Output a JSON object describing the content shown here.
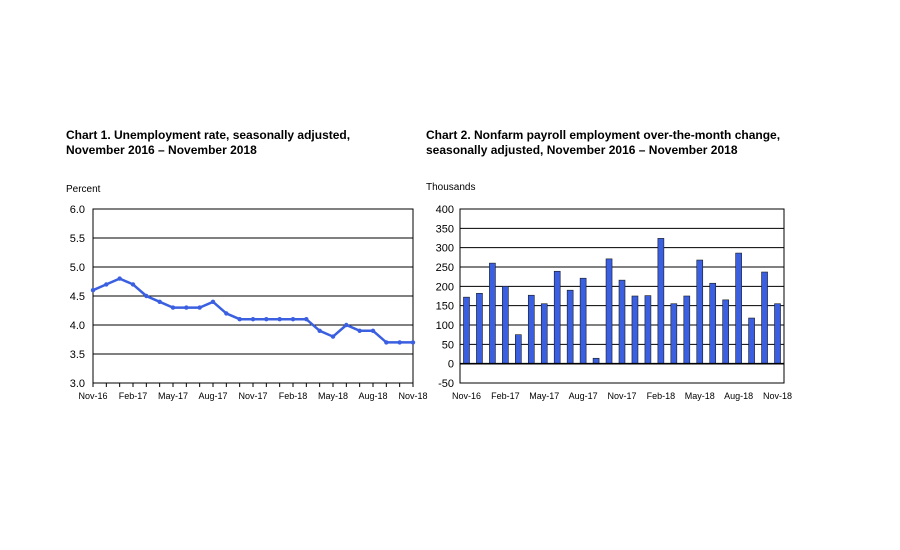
{
  "chart_data": [
    {
      "type": "line",
      "title_line1": "Chart 1. Unemployment rate, seasonally adjusted,",
      "title_line2": "November 2016 – November 2018",
      "ylabel": "Percent",
      "ylim": [
        3.0,
        6.0
      ],
      "yticks": [
        "6.0",
        "5.5",
        "5.0",
        "4.5",
        "4.0",
        "3.5",
        "3.0"
      ],
      "ytick_values": [
        6.0,
        5.5,
        5.0,
        4.5,
        4.0,
        3.5,
        3.0
      ],
      "xtick_labels": [
        "Nov-16",
        "Feb-17",
        "May-17",
        "Aug-17",
        "Nov-17",
        "Feb-18",
        "May-18",
        "Aug-18",
        "Nov-18"
      ],
      "x": [
        "Nov-16",
        "Dec-16",
        "Jan-17",
        "Feb-17",
        "Mar-17",
        "Apr-17",
        "May-17",
        "Jun-17",
        "Jul-17",
        "Aug-17",
        "Sep-17",
        "Oct-17",
        "Nov-17",
        "Dec-17",
        "Jan-18",
        "Feb-18",
        "Mar-18",
        "Apr-18",
        "May-18",
        "Jun-18",
        "Jul-18",
        "Aug-18",
        "Sep-18",
        "Oct-18",
        "Nov-18"
      ],
      "values": [
        4.6,
        4.7,
        4.8,
        4.7,
        4.5,
        4.4,
        4.3,
        4.3,
        4.3,
        4.4,
        4.2,
        4.1,
        4.1,
        4.1,
        4.1,
        4.1,
        4.1,
        3.9,
        3.8,
        4.0,
        3.9,
        3.9,
        3.7,
        3.7,
        3.7
      ],
      "grid": true,
      "color": "#3a5fe0"
    },
    {
      "type": "bar",
      "title_line1": "Chart 2. Nonfarm payroll employment over-the-month change,",
      "title_line2": "seasonally adjusted, November 2016 – November 2018",
      "ylabel": "Thousands",
      "ylim": [
        -50,
        400
      ],
      "yticks": [
        "400",
        "350",
        "300",
        "250",
        "200",
        "150",
        "100",
        "50",
        "0",
        "-50"
      ],
      "ytick_values": [
        400,
        350,
        300,
        250,
        200,
        150,
        100,
        50,
        0,
        -50
      ],
      "xtick_labels": [
        "Nov-16",
        "Feb-17",
        "May-17",
        "Aug-17",
        "Nov-17",
        "Feb-18",
        "May-18",
        "Aug-18",
        "Nov-18"
      ],
      "categories": [
        "Nov-16",
        "Dec-16",
        "Jan-17",
        "Feb-17",
        "Mar-17",
        "Apr-17",
        "May-17",
        "Jun-17",
        "Jul-17",
        "Aug-17",
        "Sep-17",
        "Oct-17",
        "Nov-17",
        "Dec-17",
        "Jan-18",
        "Feb-18",
        "Mar-18",
        "Apr-18",
        "May-18",
        "Jun-18",
        "Jul-18",
        "Aug-18",
        "Sep-18",
        "Oct-18",
        "Nov-18"
      ],
      "values": [
        172,
        182,
        260,
        200,
        75,
        177,
        155,
        239,
        190,
        221,
        14,
        271,
        216,
        175,
        176,
        324,
        155,
        175,
        268,
        208,
        165,
        286,
        118,
        237,
        155
      ],
      "grid": true,
      "color": "#3a5fe0"
    }
  ]
}
